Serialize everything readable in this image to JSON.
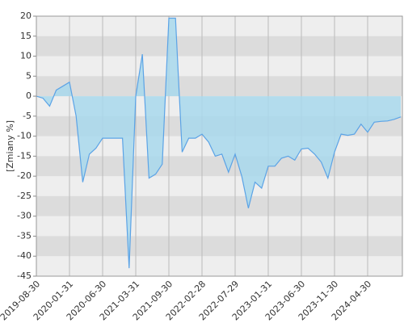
{
  "chart_data": {
    "type": "area",
    "y_label": "[Zmiany %]",
    "categories": [
      "2019-08-30",
      null,
      null,
      null,
      null,
      "2020-01-31",
      null,
      null,
      null,
      null,
      "2020-06-30",
      null,
      null,
      null,
      null,
      "2021-03-31",
      null,
      null,
      null,
      null,
      "2021-09-30",
      null,
      null,
      null,
      null,
      "2022-02-28",
      null,
      null,
      null,
      null,
      "2022-07-29",
      null,
      null,
      null,
      null,
      "2023-01-31",
      null,
      null,
      null,
      null,
      "2023-06-30",
      null,
      null,
      null,
      null,
      "2023-11-30",
      null,
      null,
      null,
      null,
      "2024-04-30",
      null,
      null,
      null,
      null,
      null
    ],
    "values": [
      0,
      -0.5,
      -2.5,
      1.5,
      2.5,
      3.5,
      -5,
      -21.5,
      -14.5,
      -13,
      -10.5,
      -10.5,
      -10.5,
      -10.5,
      -43,
      0,
      10.5,
      -20.5,
      -19.5,
      -17,
      19.5,
      19.5,
      -14,
      -10.5,
      -10.5,
      -9.5,
      -11.5,
      -15,
      -14.5,
      -19,
      -14.5,
      -20,
      -28,
      -21.5,
      -23,
      -17.5,
      -17.5,
      -15.5,
      -15,
      -16,
      -13.2,
      -13,
      -14.5,
      -16.5,
      -20.5,
      -14,
      -9.5,
      -9.8,
      -9.5,
      -7,
      -9,
      -6.5,
      -6.3,
      -6.2,
      -5.8,
      -5.2
    ],
    "color": "#5ba3e6",
    "fill_color": "#a8d8ec",
    "ylim": [
      -45,
      20
    ],
    "yticks": [
      20,
      15,
      10,
      5,
      0,
      -5,
      -10,
      -15,
      -20,
      -25,
      -30,
      -35,
      -40,
      -45
    ],
    "grid": true
  }
}
